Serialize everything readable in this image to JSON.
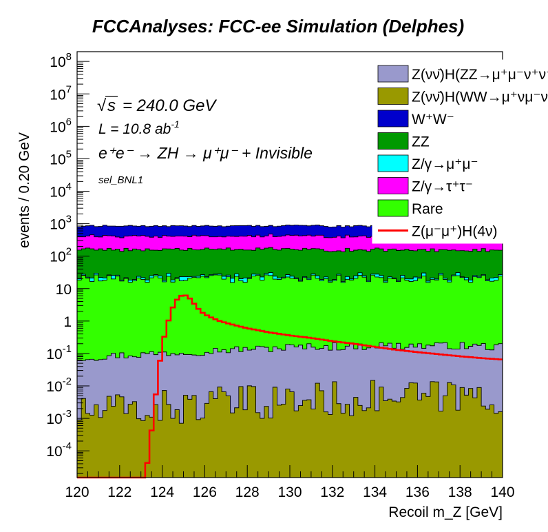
{
  "chart_data": {
    "type": "area",
    "title": "FCCAnalyses: FCC-ee Simulation (Delphes)",
    "xlabel": "Recoil m_Z [GeV]",
    "ylabel": "events / 0.20 GeV",
    "xlim": [
      120,
      140
    ],
    "ylim": [
      1.5e-05,
      200000000
    ],
    "yscale": "log",
    "grid": false,
    "legend_position": "top-right",
    "xticks": [
      "120",
      "122",
      "124",
      "126",
      "128",
      "130",
      "132",
      "134",
      "136",
      "138",
      "140"
    ],
    "yticks": [
      {
        "value": 0.0001,
        "base": "10",
        "exp": "-4"
      },
      {
        "value": 0.001,
        "base": "10",
        "exp": "-3"
      },
      {
        "value": 0.01,
        "base": "10",
        "exp": "-2"
      },
      {
        "value": 0.1,
        "base": "10",
        "exp": "-1"
      },
      {
        "value": 1,
        "base": "1",
        "exp": ""
      },
      {
        "value": 10,
        "base": "10",
        "exp": ""
      },
      {
        "value": 100,
        "base": "10",
        "exp": "2"
      },
      {
        "value": 1000,
        "base": "10",
        "exp": "3"
      },
      {
        "value": 10000,
        "base": "10",
        "exp": "4"
      },
      {
        "value": 100000,
        "base": "10",
        "exp": "5"
      },
      {
        "value": 1000000,
        "base": "10",
        "exp": "6"
      },
      {
        "value": 10000000,
        "base": "10",
        "exp": "7"
      },
      {
        "value": 100000000,
        "base": "10",
        "exp": "8"
      }
    ],
    "annotations": {
      "sqrt_s": "= 240.0 GeV",
      "lumi_prefix": "L = 10.8 ab",
      "lumi_exp": "-1",
      "process": "e⁺e⁻ → ZH → μ⁺μ⁻ + Invisible",
      "selection": "sel_BNL1"
    },
    "series": [
      {
        "name": "Z(νν̄)H(ZZ→μ⁺μ⁻ν⁺ν⁻)",
        "color": "#9999cc",
        "style": "stack",
        "levels": [
          [
            120,
            0.07
          ],
          [
            124,
            0.1
          ],
          [
            130,
            0.15
          ],
          [
            134,
            0.17
          ],
          [
            140,
            0.16
          ]
        ]
      },
      {
        "name": "Z(νν̄)H(WW→μ⁺νμ⁻ν)",
        "color": "#999900",
        "style": "stack",
        "levels": [
          [
            120,
            0.0015
          ],
          [
            126,
            0.0025
          ],
          [
            132,
            0.004
          ],
          [
            140,
            0.005
          ]
        ]
      },
      {
        "name": "W⁺W⁻",
        "color": "#0000cc",
        "style": "stack",
        "levels": [
          [
            120,
            430
          ],
          [
            130,
            440
          ],
          [
            140,
            460
          ]
        ]
      },
      {
        "name": "ZZ",
        "color": "#009900",
        "style": "stack",
        "levels": [
          [
            120,
            140
          ],
          [
            130,
            135
          ],
          [
            140,
            130
          ]
        ]
      },
      {
        "name": "Z/γ→μ⁺μ⁻",
        "color": "#00ffff",
        "style": "stack",
        "levels": [
          [
            120,
            2.5
          ],
          [
            130,
            2.5
          ],
          [
            140,
            2.5
          ]
        ]
      },
      {
        "name": "Z/γ→τ⁺τ⁻",
        "color": "#ff00ff",
        "style": "stack",
        "levels": [
          [
            120,
            250
          ],
          [
            130,
            260
          ],
          [
            140,
            270
          ]
        ]
      },
      {
        "name": "Rare",
        "color": "#33ff00",
        "style": "stack",
        "levels": [
          [
            120,
            20
          ],
          [
            130,
            20
          ],
          [
            140,
            20
          ]
        ]
      },
      {
        "name": "Z(μ⁻μ⁺)H(4ν)",
        "color": "#ff0000",
        "style": "line",
        "points": [
          [
            120,
            1.5e-05
          ],
          [
            123.2,
            1.5e-05
          ],
          [
            123.4,
            0.00012
          ],
          [
            123.6,
            0.0015
          ],
          [
            123.8,
            0.02
          ],
          [
            124.0,
            0.18
          ],
          [
            124.2,
            0.6
          ],
          [
            124.4,
            1.8
          ],
          [
            124.6,
            3.8
          ],
          [
            124.8,
            5.5
          ],
          [
            125.0,
            6.5
          ],
          [
            125.2,
            5.8
          ],
          [
            125.4,
            4.2
          ],
          [
            125.6,
            2.8
          ],
          [
            125.8,
            2.0
          ],
          [
            126.0,
            1.6
          ],
          [
            126.4,
            1.2
          ],
          [
            126.8,
            0.95
          ],
          [
            127.4,
            0.75
          ],
          [
            128.0,
            0.6
          ],
          [
            129.0,
            0.45
          ],
          [
            130.0,
            0.36
          ],
          [
            131.0,
            0.3
          ],
          [
            132.0,
            0.24
          ],
          [
            133.0,
            0.2
          ],
          [
            134.0,
            0.16
          ],
          [
            135.0,
            0.13
          ],
          [
            136.0,
            0.11
          ],
          [
            137.0,
            0.095
          ],
          [
            138.0,
            0.082
          ],
          [
            139.0,
            0.072
          ],
          [
            140.0,
            0.065
          ]
        ]
      }
    ]
  }
}
